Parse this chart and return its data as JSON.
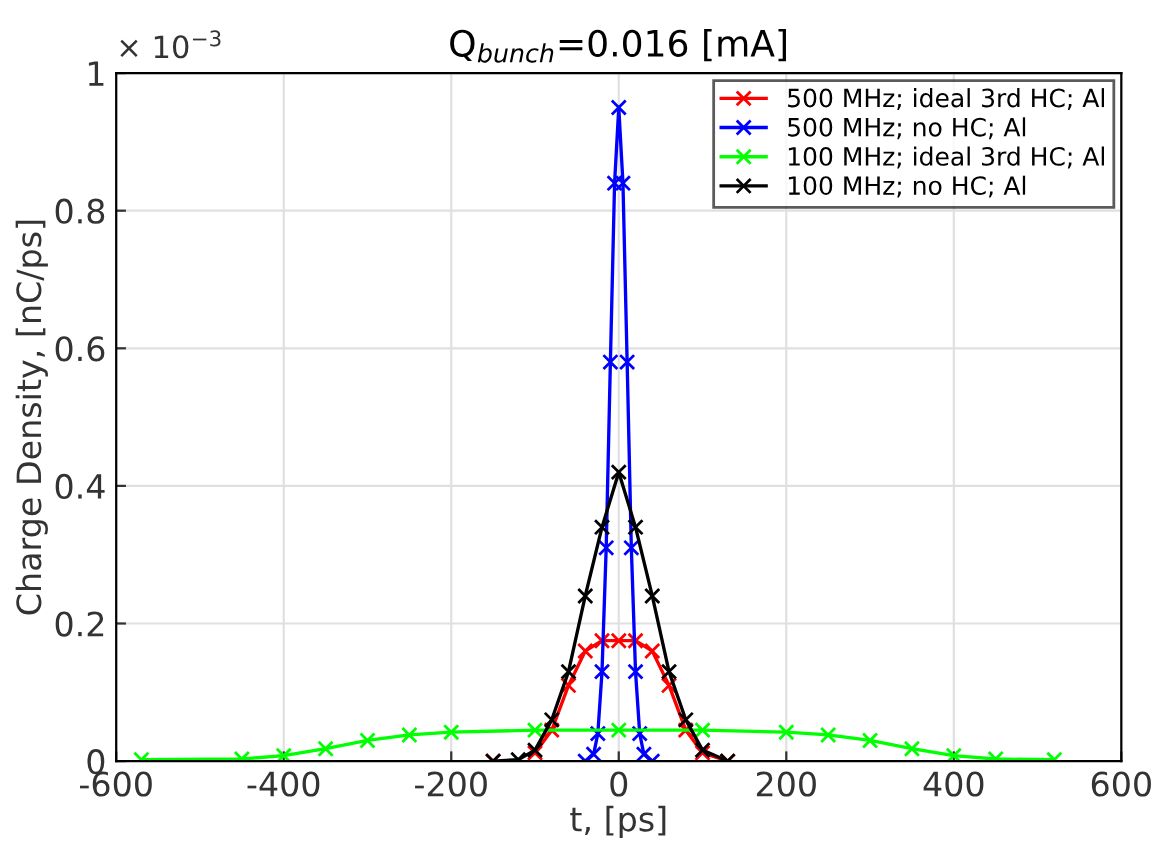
{
  "chart_data": {
    "type": "line",
    "title": "Q$_{bunch}$=0.016 [mA]",
    "xlabel": "t, [ps]",
    "ylabel": "Charge Density, [nC/ps]",
    "annotations": [
      "× 10$^{−3}$"
    ],
    "xlim": [
      -600,
      600
    ],
    "xticks": [
      -600,
      -400,
      -200,
      0,
      200,
      400,
      600
    ],
    "ylim": [
      0,
      1
    ],
    "yticks": [
      0,
      0.2,
      0.4,
      0.6,
      0.8,
      1
    ],
    "grid": true,
    "legend": "top right",
    "marker": "cross",
    "line_style": "solid",
    "series": [
      {
        "name": "500 MHz; ideal 3rd HC; Al",
        "color": "#ff0000",
        "x": [
          -150,
          -120,
          -100,
          -80,
          -60,
          -40,
          -20,
          0,
          20,
          40,
          60,
          80,
          100,
          130
        ],
        "values": [
          0,
          null,
          0.012,
          0.045,
          0.11,
          0.16,
          0.175,
          0.175,
          0.175,
          0.16,
          0.11,
          0.045,
          0.012,
          0
        ]
      },
      {
        "name": "500 MHz; no HC; Al",
        "color": "#0000ff",
        "x": [
          -40,
          -30,
          -25,
          -20,
          -15,
          -10,
          -5,
          0,
          5,
          10,
          15,
          20,
          25,
          30,
          40
        ],
        "values": [
          0,
          0.01,
          0.04,
          0.13,
          0.31,
          0.58,
          0.84,
          0.95,
          0.84,
          0.58,
          0.31,
          0.13,
          0.04,
          0.01,
          0
        ]
      },
      {
        "name": "100 MHz; ideal 3rd HC; Al",
        "color": "#00ff00",
        "x": [
          -570,
          -450,
          -400,
          -350,
          -300,
          -250,
          -200,
          -100,
          0,
          100,
          200,
          250,
          300,
          350,
          400,
          450,
          520
        ],
        "values": [
          0.002,
          0.003,
          0.008,
          0.018,
          0.03,
          0.038,
          0.042,
          0.045,
          0.045,
          0.045,
          0.042,
          0.038,
          0.03,
          0.018,
          0.008,
          0.003,
          0.002
        ]
      },
      {
        "name": "100 MHz; no HC; Al",
        "color": "#000000",
        "x": [
          -150,
          -120,
          -100,
          -80,
          -60,
          -40,
          -20,
          0,
          20,
          40,
          60,
          80,
          100,
          130
        ],
        "values": [
          0,
          0.002,
          0.016,
          0.06,
          0.13,
          0.24,
          0.34,
          0.42,
          0.34,
          0.24,
          0.13,
          0.06,
          0.016,
          0
        ]
      }
    ]
  }
}
